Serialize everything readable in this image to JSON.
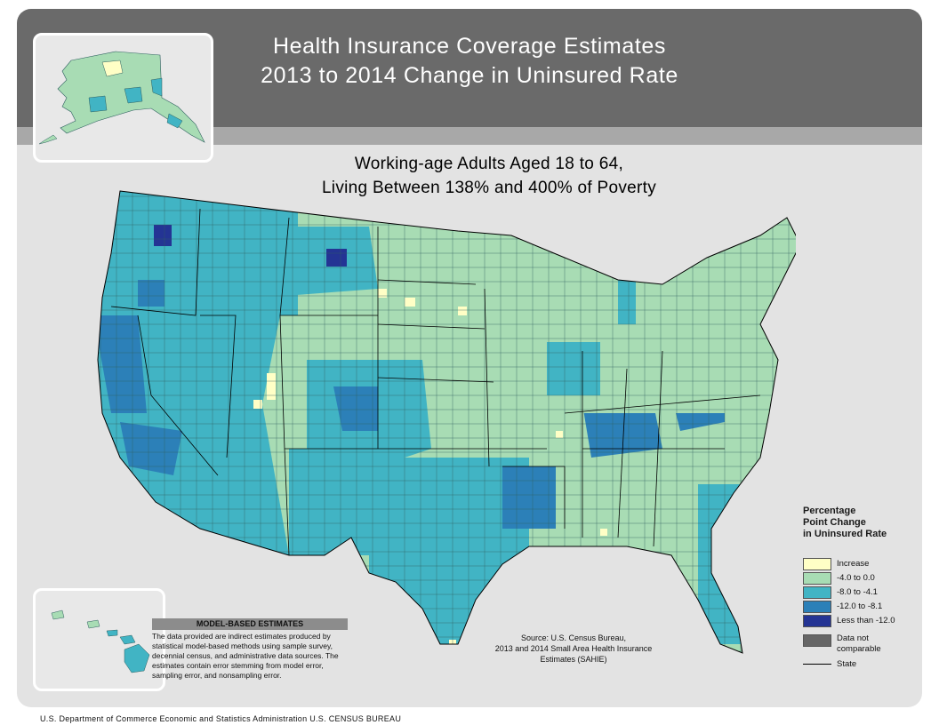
{
  "header": {
    "title_line1": "Health Insurance Coverage Estimates",
    "title_line2": "2013 to 2014 Change in Uninsured Rate"
  },
  "map": {
    "subtitle_line1": "Working-age Adults Aged 18 to 64,",
    "subtitle_line2": "Living Between 138% and 400% of Poverty",
    "insets": [
      "alaska-inset",
      "hawaii-inset"
    ],
    "colors": {
      "increase": "#ffffc6",
      "small_decrease": "#a8dcb4",
      "medium_decrease": "#41b4c4",
      "large_decrease": "#2c80b8",
      "largest_decrease": "#243494",
      "not_comparable": "#666666"
    }
  },
  "legend": {
    "title_line1": "Percentage",
    "title_line2": "Point Change",
    "title_line3": "in Uninsured Rate",
    "items": [
      {
        "label": "Increase",
        "color": "#ffffc6"
      },
      {
        "label": "-4.0 to  0.0",
        "color": "#a8dcb4"
      },
      {
        "label": "-8.0 to -4.1",
        "color": "#41b4c4"
      },
      {
        "label": "-12.0 to -8.1",
        "color": "#2c80b8"
      },
      {
        "label": "Less than -12.0",
        "color": "#243494"
      },
      {
        "label": "Data not comparable",
        "color": "#666666"
      }
    ],
    "state_label": "State"
  },
  "note": {
    "heading": "MODEL-BASED ESTIMATES",
    "body": "The data provided are indirect estimates produced by statistical model-based methods using sample survey, decennial census, and administrative data sources. The estimates contain error stemming from model error, sampling error, and nonsampling error."
  },
  "source": {
    "line1": "Source: U.S. Census Bureau,",
    "line2": "2013 and 2014 Small Area Health Insurance",
    "line3": "Estimates (SAHIE)"
  },
  "footer": {
    "text": "U.S. Department of Commerce  Economic and Statistics Administration  U.S. CENSUS BUREAU"
  }
}
